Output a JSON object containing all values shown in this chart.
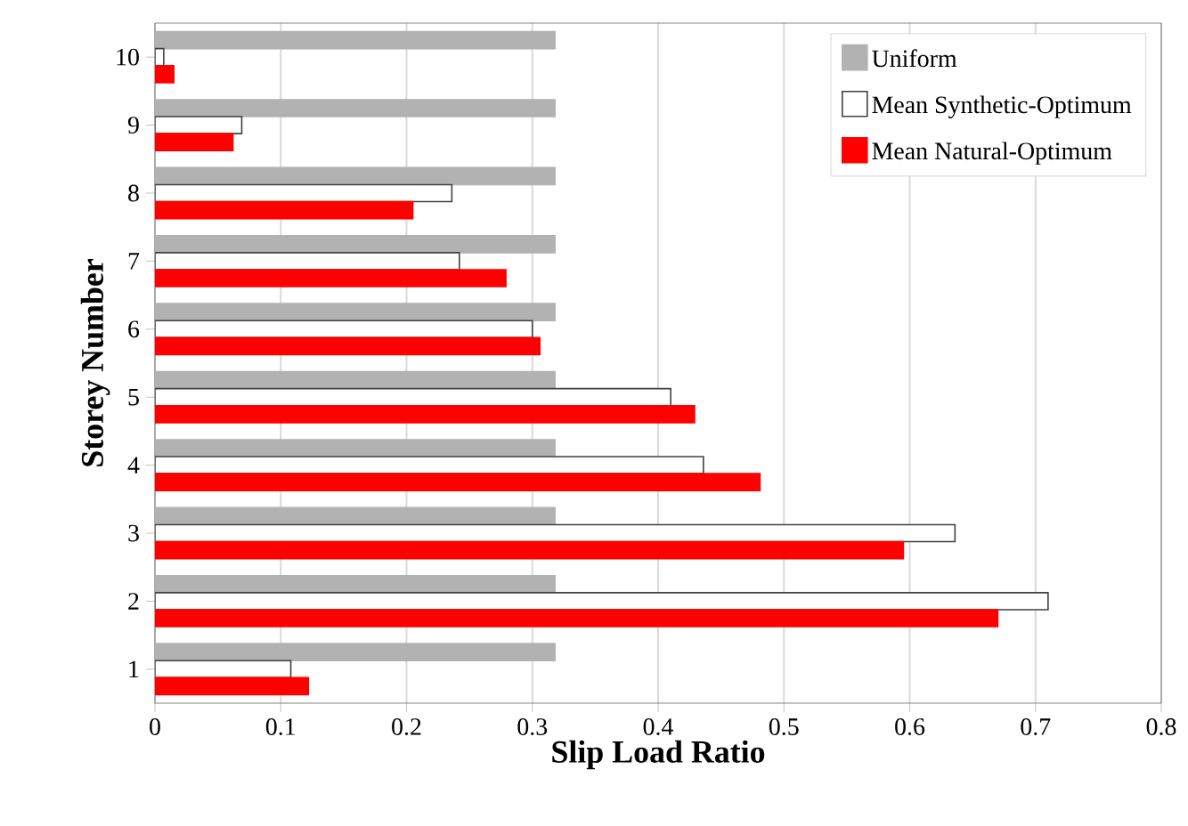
{
  "chart_data": {
    "type": "bar",
    "orientation": "horizontal",
    "xlabel": "Slip Load Ratio",
    "ylabel": "Storey Number",
    "categories": [
      "10",
      "9",
      "8",
      "7",
      "6",
      "5",
      "4",
      "3",
      "2",
      "1"
    ],
    "series": [
      {
        "name": "Uniform",
        "color": "#b2b2b2",
        "values": [
          0.318,
          0.318,
          0.318,
          0.318,
          0.318,
          0.318,
          0.318,
          0.318,
          0.318,
          0.318
        ]
      },
      {
        "name": "Mean Synthetic-Optimum",
        "color": "#ffffff",
        "values": [
          0.007,
          0.069,
          0.236,
          0.242,
          0.3,
          0.41,
          0.436,
          0.636,
          0.71,
          0.108
        ]
      },
      {
        "name": "Mean Natural-Optimum",
        "color": "#ff0000",
        "values": [
          0.015,
          0.062,
          0.205,
          0.279,
          0.306,
          0.429,
          0.481,
          0.595,
          0.67,
          0.122
        ]
      }
    ],
    "xlim": [
      0,
      0.8
    ],
    "xticks": [
      0,
      0.1,
      0.2,
      0.3,
      0.4,
      0.5,
      0.6,
      0.7,
      0.8
    ],
    "grid": "x",
    "legend": "top right"
  }
}
